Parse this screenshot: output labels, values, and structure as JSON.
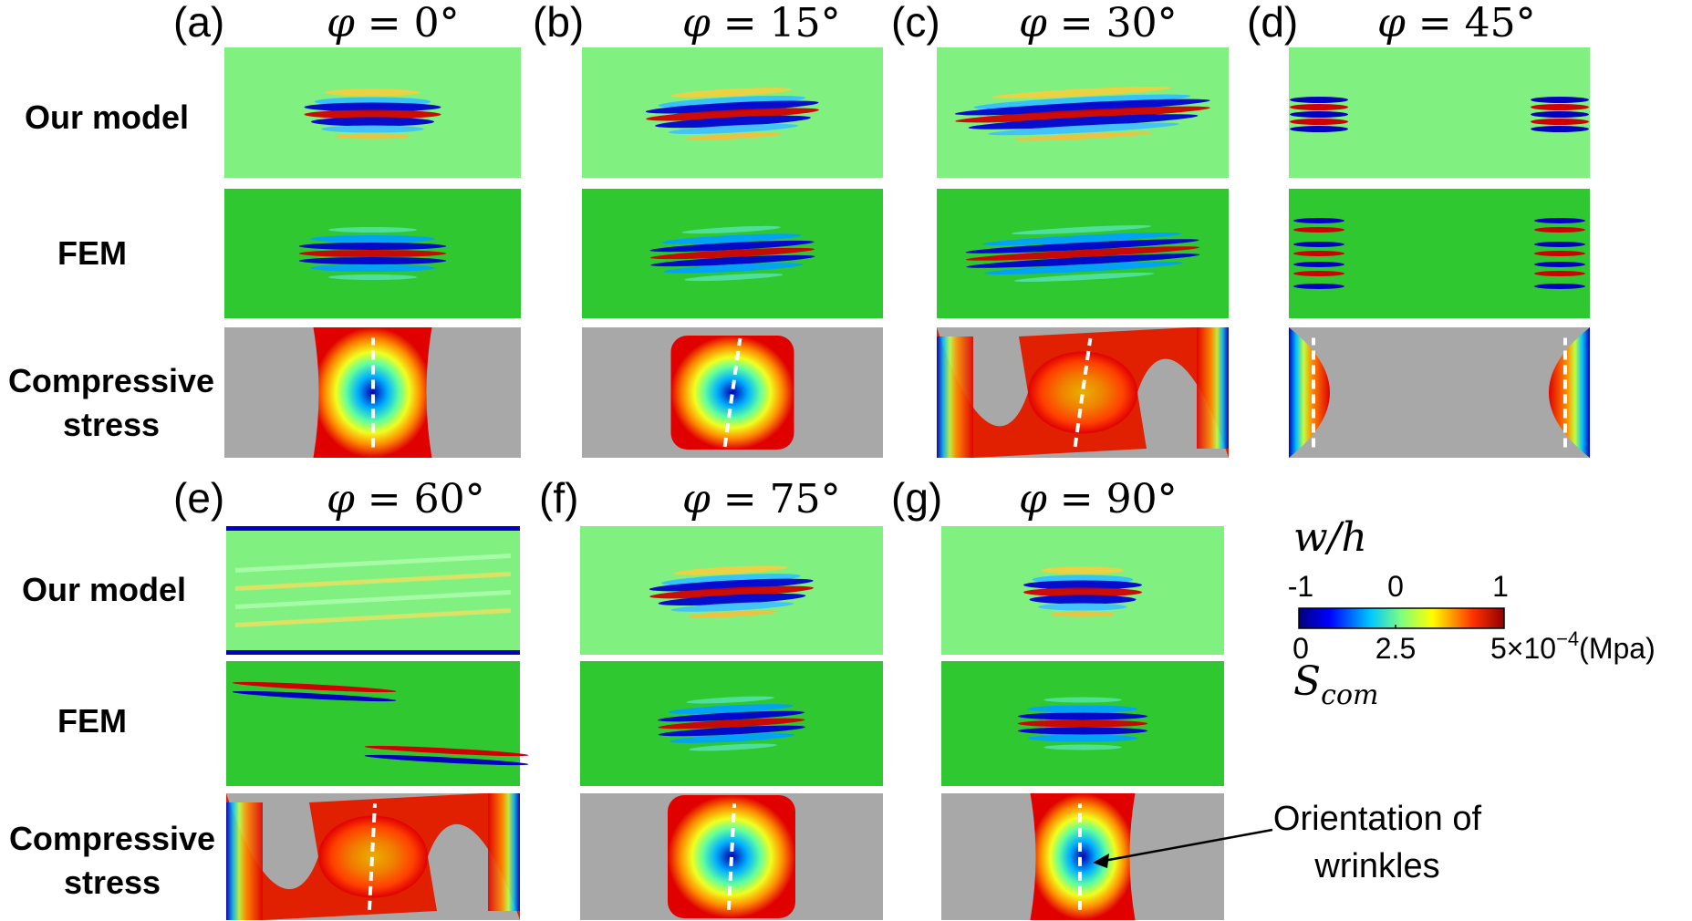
{
  "row_labels": {
    "top": {
      "model": "Our model",
      "fem": "FEM",
      "stress_line1": "Compressive",
      "stress_line2": "stress"
    },
    "bottom": {
      "model": "Our model",
      "fem": "FEM",
      "stress_line1": "Compressive",
      "stress_line2": "stress"
    }
  },
  "columns": [
    {
      "letter": "(a)",
      "phi": "φ",
      "value": " = 0°",
      "angle": 0
    },
    {
      "letter": "(b)",
      "phi": "φ",
      "value": " = 15°",
      "angle": 15
    },
    {
      "letter": "(c)",
      "phi": "φ",
      "value": " = 30°",
      "angle": 30
    },
    {
      "letter": "(d)",
      "phi": "φ",
      "value": " = 45°",
      "angle": 45
    },
    {
      "letter": "(e)",
      "phi": "φ",
      "value": " = 60°",
      "angle": 60
    },
    {
      "letter": "(f)",
      "phi": "φ",
      "value": " = 75°",
      "angle": 75
    },
    {
      "letter": "(g)",
      "phi": "φ",
      "value": " = 90°",
      "angle": 90
    }
  ],
  "colorbar": {
    "title_w": "w/h",
    "top_ticks": [
      "-1",
      "0",
      "1"
    ],
    "bottom_ticks": [
      "0",
      "2.5",
      "5×10"
    ],
    "exponent": "−4",
    "unit": "(Mpa)",
    "title_s": "S",
    "title_s_sub": "com",
    "colors": [
      "#00007f",
      "#0000ff",
      "#00c8ff",
      "#7fff7f",
      "#ffff00",
      "#ff3000",
      "#900000"
    ]
  },
  "annotation": {
    "line1": "Orientation of",
    "line2": "wrinkles"
  },
  "colors": {
    "background_green": "#80f080",
    "fem_green": "#30c830",
    "stress_grey": "#a8a8a8",
    "red": "#e00000",
    "blue": "#0000c8"
  }
}
